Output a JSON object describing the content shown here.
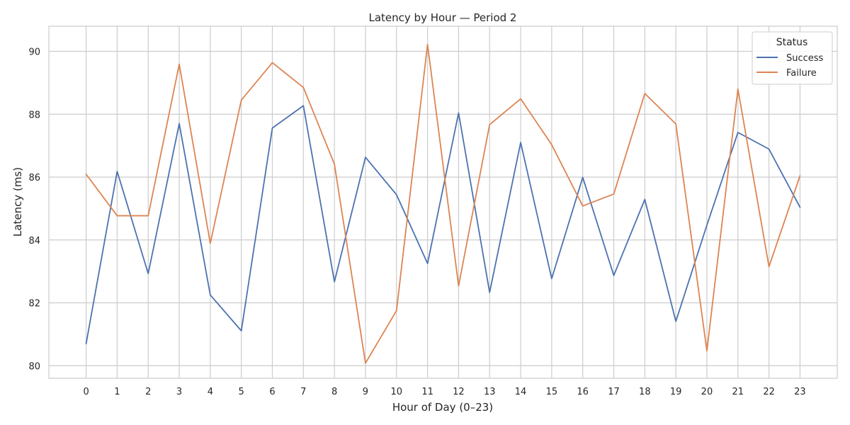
{
  "chart_data": {
    "type": "line",
    "title": "Latency by Hour — Period 2",
    "xlabel": "Hour of Day (0–23)",
    "ylabel": "Latency (ms)",
    "x": [
      0,
      1,
      2,
      3,
      4,
      5,
      6,
      7,
      8,
      9,
      10,
      11,
      12,
      13,
      14,
      15,
      16,
      17,
      18,
      19,
      20,
      21,
      22,
      23
    ],
    "xlim": [
      -1.2,
      24.2
    ],
    "ylim": [
      79.6,
      90.8
    ],
    "yticks": [
      80,
      82,
      84,
      86,
      88,
      90
    ],
    "grid": true,
    "legend": {
      "title": "Status",
      "placement": "top-right"
    },
    "series": [
      {
        "name": "Success",
        "color": "#4c72b0",
        "values": [
          80.7,
          86.18,
          82.93,
          87.7,
          82.25,
          81.11,
          87.56,
          88.27,
          82.67,
          86.63,
          85.44,
          83.25,
          88.04,
          82.33,
          87.1,
          82.77,
          85.99,
          82.87,
          85.29,
          81.41,
          84.47,
          87.42,
          86.89,
          85.04
        ]
      },
      {
        "name": "Failure",
        "color": "#dd8452",
        "values": [
          86.09,
          84.77,
          84.77,
          89.59,
          83.89,
          88.45,
          89.64,
          88.85,
          86.41,
          80.08,
          81.75,
          90.22,
          82.54,
          87.67,
          88.49,
          87.03,
          85.08,
          85.46,
          88.66,
          87.69,
          80.47,
          88.8,
          83.15,
          86.04
        ]
      }
    ]
  }
}
